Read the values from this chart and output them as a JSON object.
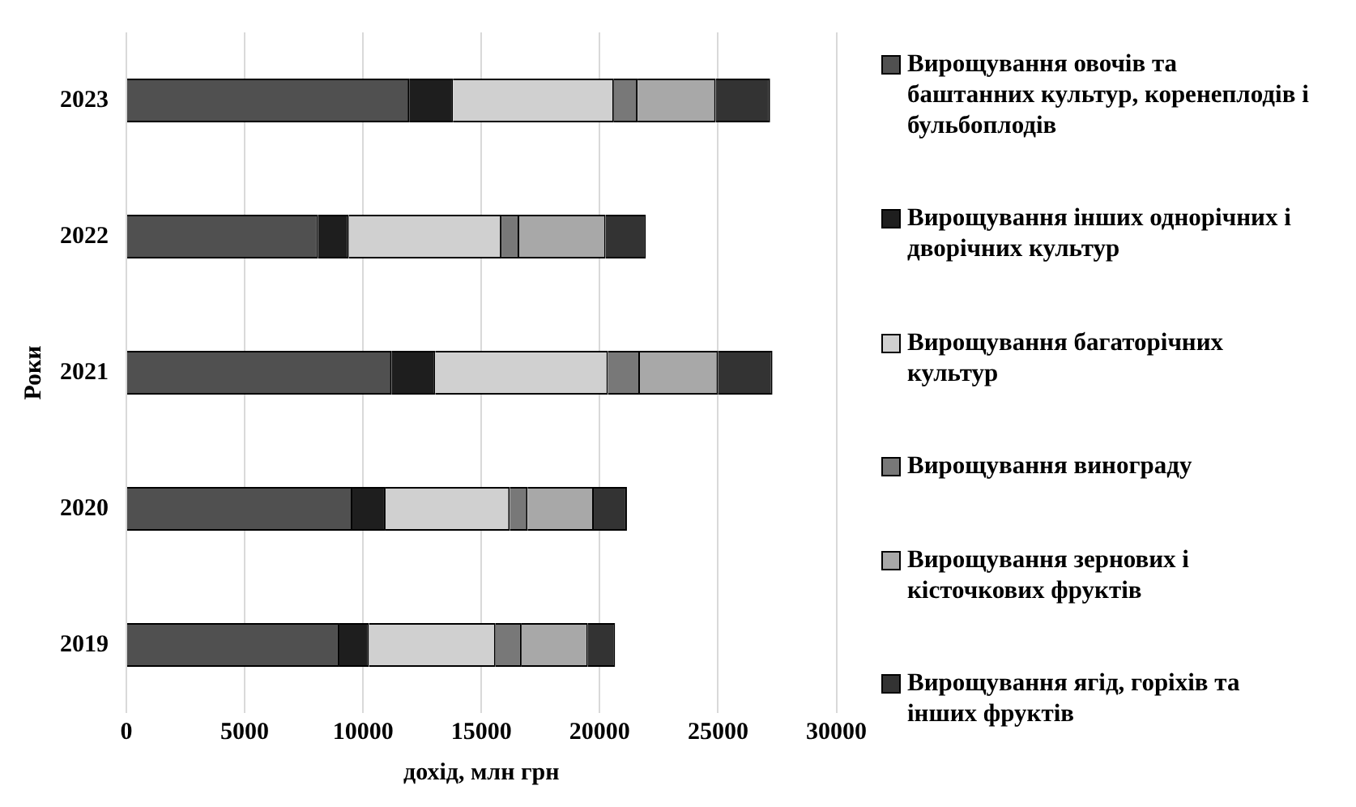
{
  "chart_data": {
    "type": "bar",
    "orientation": "horizontal",
    "stacked": true,
    "xlabel": "дохід, млн грн",
    "ylabel": "Роки",
    "categories": [
      "2023",
      "2022",
      "2021",
      "2020",
      "2019"
    ],
    "series": [
      {
        "name": "Вирощування овочів та баштанних культур, коренеплодів і бульбоплодів",
        "color": "#505050",
        "values": [
          11950,
          8100,
          11200,
          9550,
          9000
        ]
      },
      {
        "name": "Вирощування інших однорічних і дворічних культур",
        "color": "#1e1e1e",
        "values": [
          1850,
          1300,
          1850,
          1400,
          1250
        ]
      },
      {
        "name": "Вирощування багаторічних культур",
        "color": "#d0d0d0",
        "values": [
          6800,
          6450,
          7300,
          5250,
          5350
        ]
      },
      {
        "name": "Вирощування винограду",
        "color": "#787878",
        "values": [
          1000,
          750,
          1350,
          750,
          1100
        ]
      },
      {
        "name": "Вирощування зернових і кісточкових фруктів",
        "color": "#a8a8a8",
        "values": [
          3300,
          3650,
          3300,
          2800,
          2800
        ]
      },
      {
        "name": "Вирощування ягід, горіхів та інших фруктів",
        "color": "#333333",
        "values": [
          2300,
          1700,
          2300,
          1400,
          1150
        ]
      }
    ],
    "xlim": [
      0,
      30000
    ],
    "xticks": [
      0,
      5000,
      10000,
      15000,
      20000,
      25000,
      30000
    ],
    "grid": "x",
    "legend": "right"
  }
}
